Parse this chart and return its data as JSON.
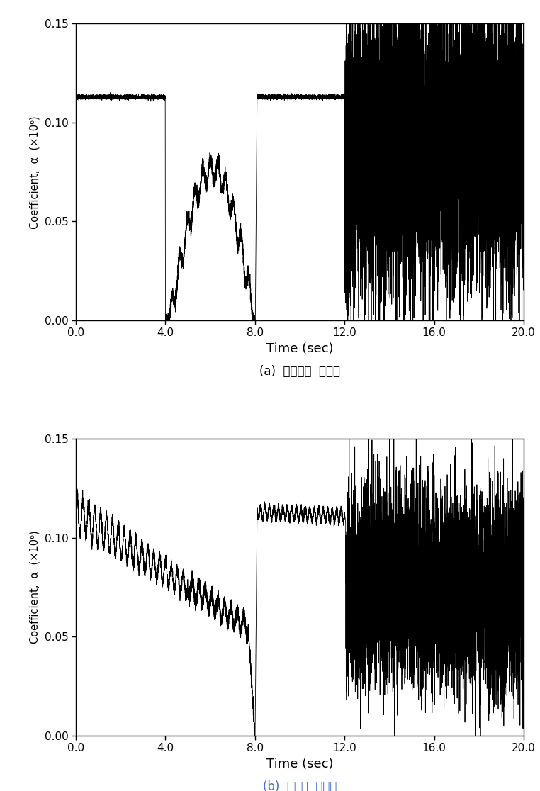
{
  "fig_width": 7.62,
  "fig_height": 11.16,
  "dpi": 100,
  "background_color": "#ffffff",
  "subplot_a_caption": "(a)  중앙경간  중앙점",
  "subplot_b_caption": "(b)  측경간  중앙점",
  "caption_color_a": "#000000",
  "caption_color_b": "#4472c4",
  "xlabel": "Time (sec)",
  "ylabel": "Coefficient,  α  (×10⁶)",
  "xlim": [
    0.0,
    20.0
  ],
  "ylim": [
    0.0,
    0.15
  ],
  "yticks": [
    0.0,
    0.05,
    0.1,
    0.15
  ],
  "xticks": [
    0.0,
    4.0,
    8.0,
    12.0,
    16.0,
    20.0
  ],
  "line_color": "#000000",
  "line_width": 0.6,
  "high_val": 0.113
}
